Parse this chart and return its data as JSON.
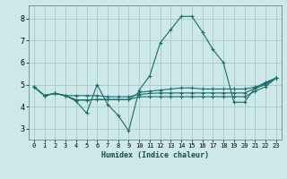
{
  "title": "",
  "xlabel": "Humidex (Indice chaleur)",
  "ylabel": "",
  "background_color": "#cce8e8",
  "grid_color": "#b0cccc",
  "line_color": "#1a6b6b",
  "xlim": [
    -0.5,
    23.5
  ],
  "ylim": [
    2.5,
    8.6
  ],
  "yticks": [
    3,
    4,
    5,
    6,
    7,
    8
  ],
  "xticks": [
    0,
    1,
    2,
    3,
    4,
    5,
    6,
    7,
    8,
    9,
    10,
    11,
    12,
    13,
    14,
    15,
    16,
    17,
    18,
    19,
    20,
    21,
    22,
    23
  ],
  "lines": [
    [
      4.9,
      4.5,
      4.6,
      4.5,
      4.25,
      3.7,
      5.0,
      4.1,
      3.6,
      2.9,
      4.75,
      5.4,
      6.9,
      7.5,
      8.1,
      8.1,
      7.4,
      6.6,
      6.0,
      4.2,
      4.2,
      4.85,
      5.1,
      5.3
    ],
    [
      4.9,
      4.5,
      4.6,
      4.5,
      4.5,
      4.5,
      4.5,
      4.45,
      4.45,
      4.45,
      4.55,
      4.6,
      4.62,
      4.62,
      4.62,
      4.62,
      4.62,
      4.62,
      4.62,
      4.62,
      4.62,
      4.82,
      5.0,
      5.3
    ],
    [
      4.9,
      4.5,
      4.6,
      4.5,
      4.3,
      4.3,
      4.32,
      4.32,
      4.32,
      4.32,
      4.45,
      4.45,
      4.45,
      4.45,
      4.45,
      4.45,
      4.45,
      4.45,
      4.45,
      4.45,
      4.45,
      4.7,
      4.9,
      5.3
    ],
    [
      4.9,
      4.5,
      4.6,
      4.5,
      4.3,
      4.3,
      4.32,
      4.32,
      4.32,
      4.32,
      4.65,
      4.7,
      4.75,
      4.8,
      4.85,
      4.85,
      4.8,
      4.8,
      4.8,
      4.8,
      4.8,
      4.88,
      5.05,
      5.3
    ]
  ]
}
